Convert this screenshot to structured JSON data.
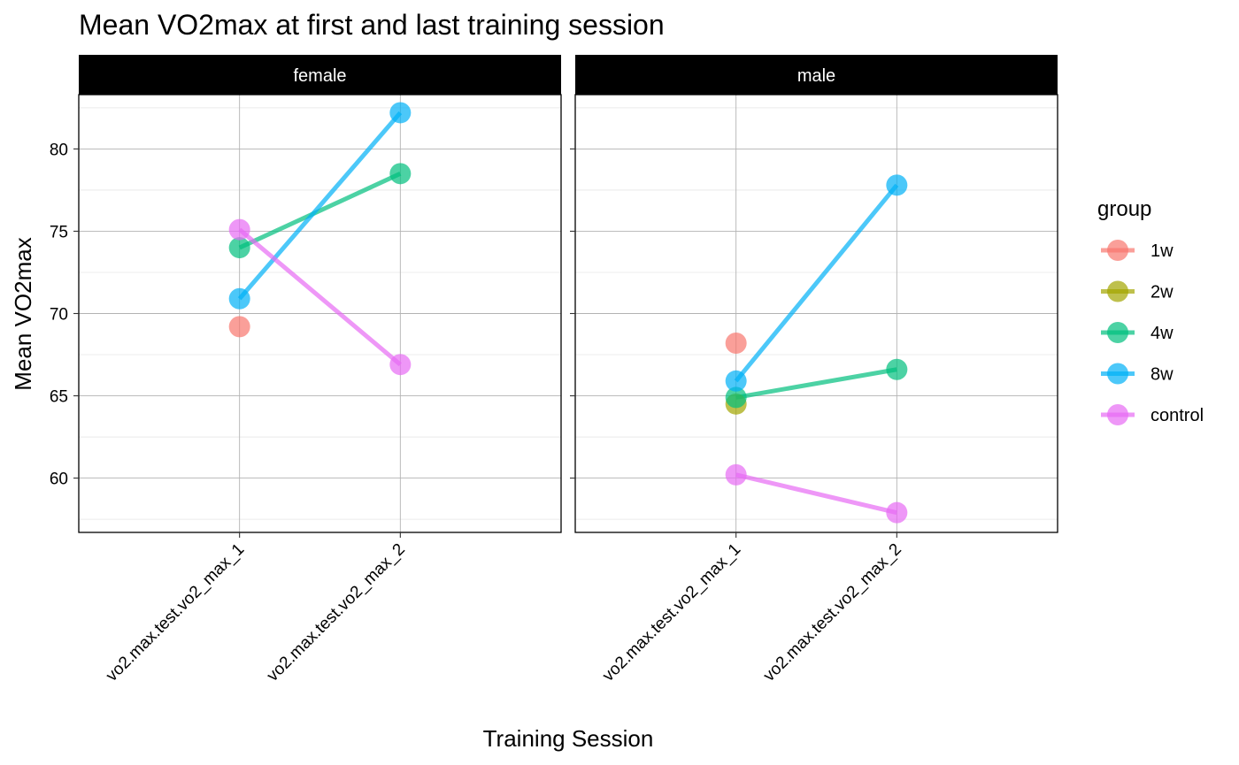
{
  "chart_data": {
    "type": "line",
    "title": "Mean VO2max at first and last training session",
    "xlabel": "Training Session",
    "ylabel": "Mean VO2max",
    "categories": [
      "vo2.max.test.vo2_max_1",
      "vo2.max.test.vo2_max_2"
    ],
    "ylim": [
      56.7,
      83.3
    ],
    "yticks": [
      60,
      65,
      70,
      75,
      80
    ],
    "grid": true,
    "legend": {
      "title": "group",
      "placement": "right",
      "entries": [
        "1w",
        "2w",
        "4w",
        "8w",
        "control"
      ]
    },
    "colors": {
      "1w": "#F8766D",
      "2w": "#A3A500",
      "4w": "#00BF7D",
      "8w": "#00B0F6",
      "control": "#E76BF3"
    },
    "panels": [
      {
        "name": "female",
        "series": [
          {
            "name": "1w",
            "values": [
              69.2,
              null
            ]
          },
          {
            "name": "2w",
            "values": [
              null,
              null
            ]
          },
          {
            "name": "4w",
            "values": [
              74.0,
              78.5
            ]
          },
          {
            "name": "8w",
            "values": [
              70.9,
              82.2
            ]
          },
          {
            "name": "control",
            "values": [
              75.1,
              66.9
            ]
          }
        ]
      },
      {
        "name": "male",
        "series": [
          {
            "name": "1w",
            "values": [
              68.2,
              null
            ]
          },
          {
            "name": "2w",
            "values": [
              64.5,
              null
            ]
          },
          {
            "name": "4w",
            "values": [
              64.9,
              66.6
            ]
          },
          {
            "name": "8w",
            "values": [
              65.9,
              77.8
            ]
          },
          {
            "name": "control",
            "values": [
              60.2,
              57.9
            ]
          }
        ]
      }
    ]
  }
}
